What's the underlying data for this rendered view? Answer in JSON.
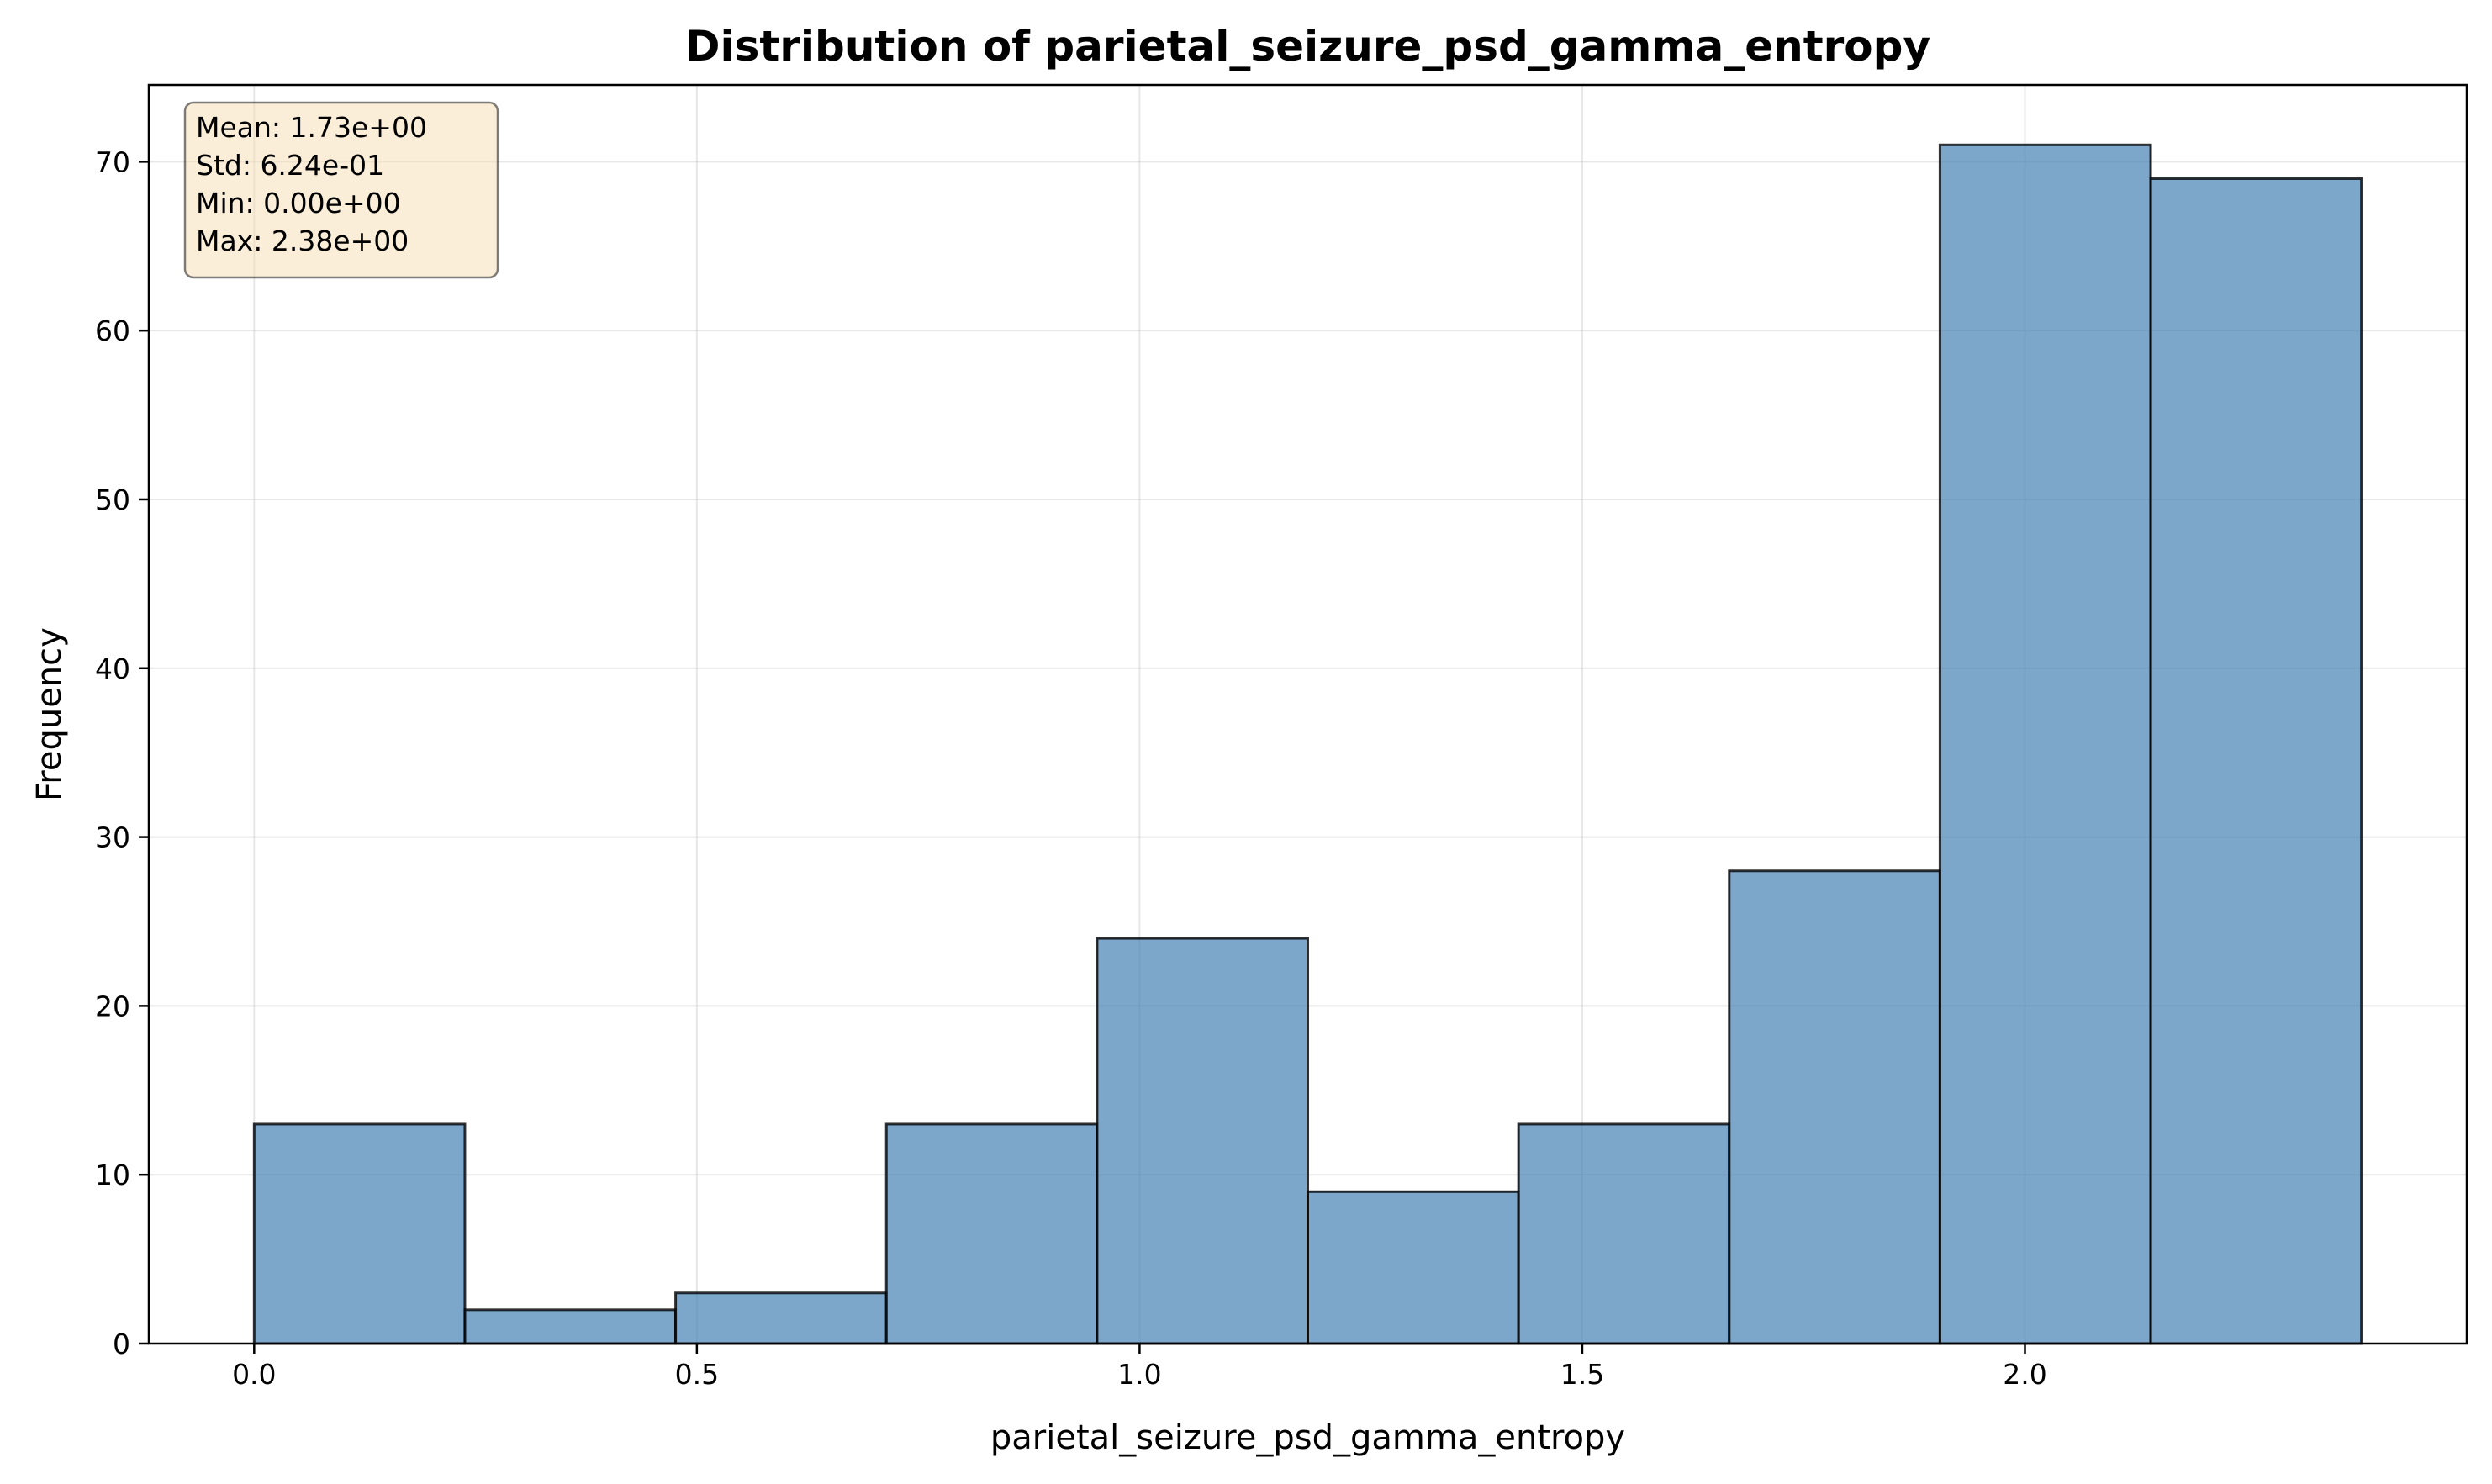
{
  "chart_data": {
    "type": "bar",
    "title": "Distribution of parietal_seizure_psd_gamma_entropy",
    "xlabel": "parietal_seizure_psd_gamma_entropy",
    "ylabel": "Frequency",
    "xlim": [
      -0.119,
      2.499
    ],
    "ylim": [
      0,
      74.55
    ],
    "x_ticks": [
      0.0,
      0.5,
      1.0,
      1.5,
      2.0
    ],
    "x_tick_labels": [
      "0.0",
      "0.5",
      "1.0",
      "1.5",
      "2.0"
    ],
    "y_ticks": [
      0,
      10,
      20,
      30,
      40,
      50,
      60,
      70
    ],
    "y_tick_labels": [
      "0",
      "10",
      "20",
      "30",
      "40",
      "50",
      "60",
      "70"
    ],
    "bin_edges": [
      0.0,
      0.238,
      0.476,
      0.714,
      0.952,
      1.19,
      1.428,
      1.666,
      1.904,
      2.142,
      2.38
    ],
    "values": [
      13,
      2,
      3,
      13,
      24,
      9,
      13,
      28,
      71,
      69
    ],
    "grid": true,
    "bar_color": "#4682b4",
    "bar_edge_color": "#000000",
    "stats_box": {
      "lines": [
        "Mean: 1.73e+00",
        "Std: 6.24e-01",
        "Min: 0.00e+00",
        "Max: 2.38e+00"
      ],
      "placement": "top-left",
      "background": "#f5deb3"
    }
  }
}
